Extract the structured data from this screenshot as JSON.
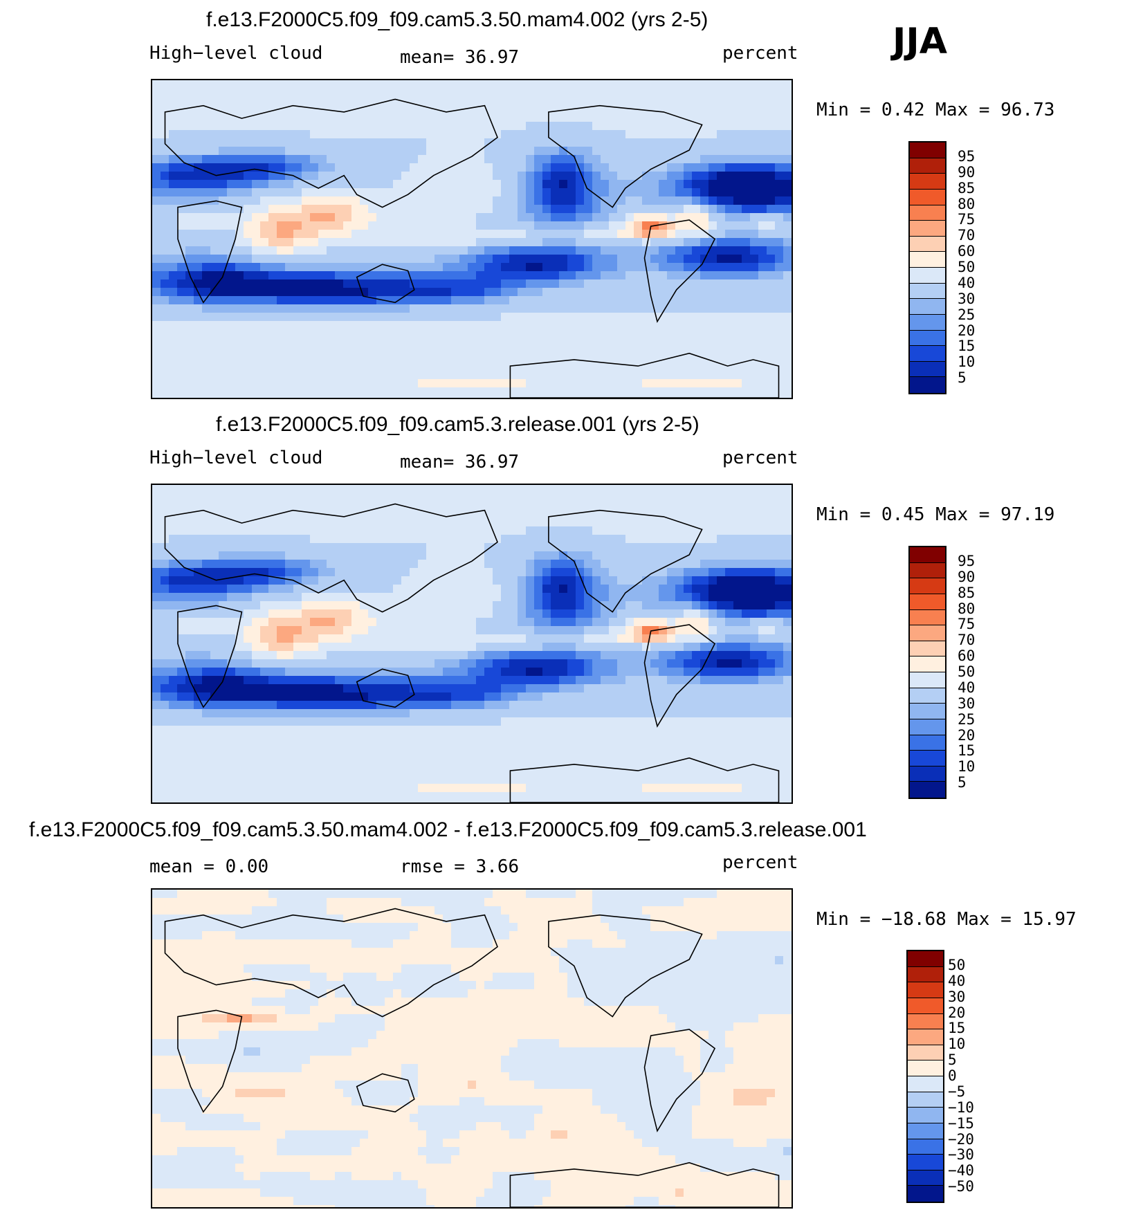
{
  "season": "JJA",
  "panels": [
    {
      "title": "f.e13.F2000C5.f09_f09.cam5.3.50.mam4.002 (yrs 2-5)",
      "left_label": "High−level cloud",
      "center_label": "mean=   36.97",
      "right_label": "percent",
      "stats": "Min =    0.42 Max =   96.73",
      "palette": [
        "#800000",
        "#b0200a",
        "#d63a14",
        "#f05a2a",
        "#f88050",
        "#fca880",
        "#fdd0b4",
        "#fff0e0",
        "#dbe8f8",
        "#b4cff4",
        "#90b6f0",
        "#6496ec",
        "#3a72e6",
        "#1848d8",
        "#0a2fb8",
        "#02168c"
      ],
      "levels": [
        "95",
        "90",
        "85",
        "80",
        "75",
        "70",
        "60",
        "50",
        "40",
        "30",
        "25",
        "20",
        "15",
        "10",
        "5"
      ],
      "field": "regular"
    },
    {
      "title": "f.e13.F2000C5.f09_f09.cam5.3.release.001 (yrs 2-5)",
      "left_label": "High−level cloud",
      "center_label": "mean=   36.97",
      "right_label": "percent",
      "stats": "Min =    0.45 Max =   97.19",
      "palette": [
        "#800000",
        "#b0200a",
        "#d63a14",
        "#f05a2a",
        "#f88050",
        "#fca880",
        "#fdd0b4",
        "#fff0e0",
        "#dbe8f8",
        "#b4cff4",
        "#90b6f0",
        "#6496ec",
        "#3a72e6",
        "#1848d8",
        "#0a2fb8",
        "#02168c"
      ],
      "levels": [
        "95",
        "90",
        "85",
        "80",
        "75",
        "70",
        "60",
        "50",
        "40",
        "30",
        "25",
        "20",
        "15",
        "10",
        "5"
      ],
      "field": "regular"
    },
    {
      "title": "f.e13.F2000C5.f09_f09.cam5.3.50.mam4.002 - f.e13.F2000C5.f09_f09.cam5.3.release.001",
      "left_label": "mean =    0.00",
      "center_label": "rmse =    3.66",
      "right_label": "percent",
      "stats": "Min = −18.68 Max =   15.97",
      "palette": [
        "#800000",
        "#b0200a",
        "#d63a14",
        "#f05a2a",
        "#f88050",
        "#fca880",
        "#fdd0b4",
        "#fff0e0",
        "#dbe8f8",
        "#b4cff4",
        "#90b6f0",
        "#6496ec",
        "#3a72e6",
        "#1848d8",
        "#0a2fb8",
        "#02168c"
      ],
      "levels": [
        "50",
        "40",
        "30",
        "20",
        "15",
        "10",
        "5",
        "0",
        "−5",
        "−10",
        "−15",
        "−20",
        "−30",
        "−40",
        "−50"
      ],
      "field": "diff"
    }
  ]
}
